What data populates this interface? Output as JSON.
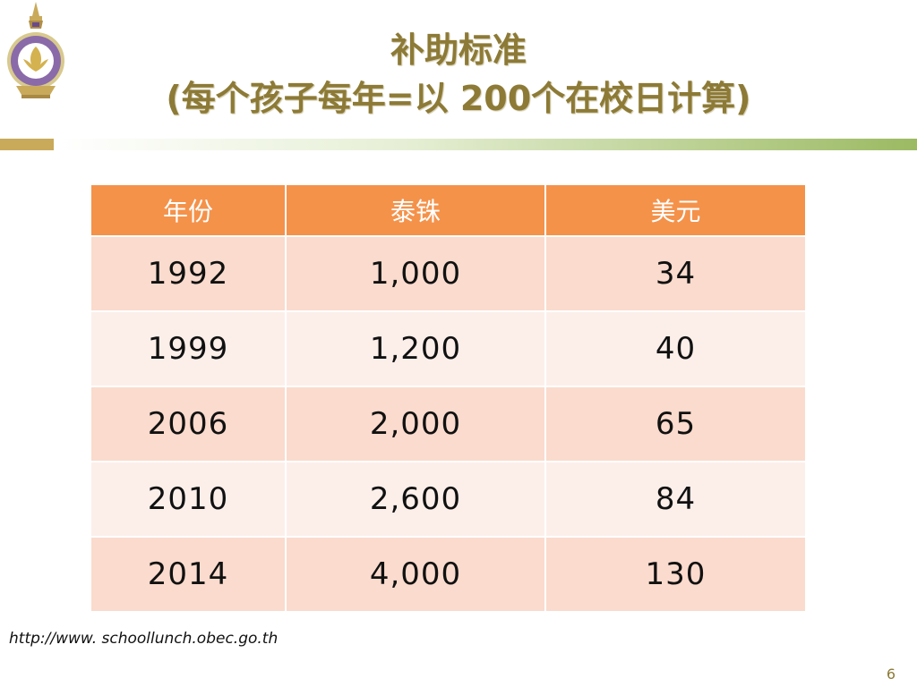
{
  "slide": {
    "title_line1": "补助标准",
    "title_line2": "(每个孩子每年=以 200个在校日计算)",
    "source": "http://www. schoollunch.obec.go.th",
    "page_number": "6"
  },
  "table": {
    "headers": [
      "年份",
      "泰铢",
      "美元"
    ],
    "rows": [
      [
        "1992",
        "1,000",
        "34"
      ],
      [
        "1999",
        "1,200",
        "40"
      ],
      [
        "2006",
        "2,000",
        "65"
      ],
      [
        "2010",
        "2,600",
        "84"
      ],
      [
        "2014",
        "4,000",
        "130"
      ]
    ]
  },
  "colors": {
    "title": "#8c7a36",
    "header_fill": "#f4924a",
    "row_odd": "#fadbcd",
    "row_even": "#fcefea",
    "rule_gold": "#c9aa5b",
    "rule_green": "#9bba62"
  }
}
